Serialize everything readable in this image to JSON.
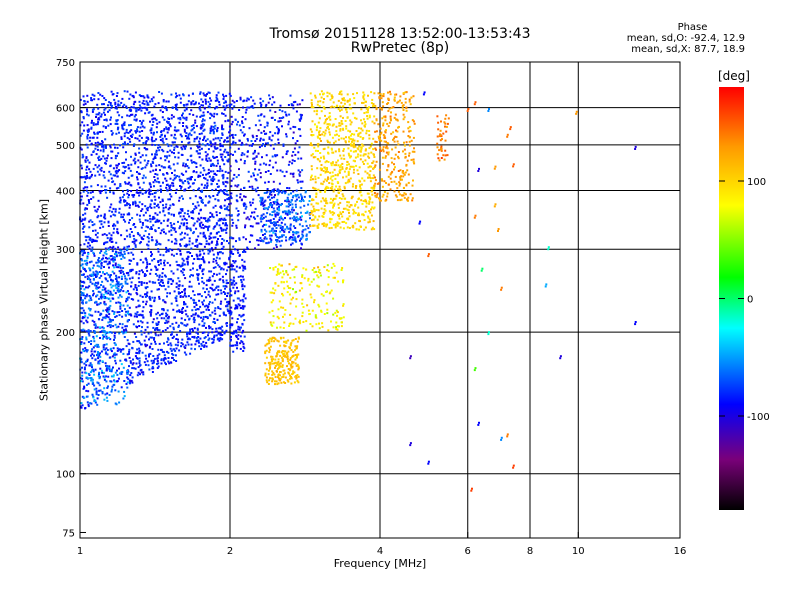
{
  "title": {
    "line1": "Tromsø 20151128 13:52:00-13:53:43",
    "line2": "RwPretec (8p)"
  },
  "phase_info": {
    "heading": "Phase",
    "o_mode": "mean, sd,O:  -92.4,  12.9",
    "x_mode": "mean, sd,X:   87.7,  18.9"
  },
  "colorbar": {
    "unit_label": "[deg]",
    "tick_labels": [
      "100",
      "0",
      "-100"
    ],
    "tick_values": [
      100,
      0,
      -100
    ],
    "range": [
      -180,
      180
    ],
    "colormap": "rainbow (black-purple-blue-cyan-green-yellow-orange-red)"
  },
  "chart_data": {
    "type": "scatter",
    "xlabel": "Frequency [MHz]",
    "ylabel": "Stationary phase Virtual Height [km]",
    "x_scale": "log",
    "y_scale": "log",
    "xlim": [
      1,
      16
    ],
    "ylim": [
      73,
      750
    ],
    "x_ticks": [
      1,
      2,
      4,
      6,
      8,
      10,
      16
    ],
    "x_tick_labels": [
      "1",
      "2",
      "4",
      "6",
      "8",
      "10",
      "16"
    ],
    "y_ticks": [
      75,
      100,
      200,
      300,
      400,
      500,
      600,
      750
    ],
    "y_tick_labels": [
      "75",
      "100",
      "200",
      "300",
      "400",
      "500",
      "600",
      "750"
    ],
    "grid_x": [
      2,
      4,
      6,
      8,
      10
    ],
    "grid_y": [
      100,
      200,
      300,
      400,
      500,
      600
    ],
    "grid": true,
    "regions": [
      {
        "x_min": 1.0,
        "x_max": 2.0,
        "h_min_at_start": 135,
        "h_min_at_end": 195,
        "h_max": 650,
        "phase_mean": -92,
        "phase_sd": 12,
        "count": 3000
      },
      {
        "x_min": 1.0,
        "x_max": 1.25,
        "h_min": 140,
        "h_max": 300,
        "phase_mean": -60,
        "phase_sd": 15,
        "count": 300
      },
      {
        "x_min": 2.0,
        "x_max": 2.8,
        "h_min": 300,
        "h_max": 640,
        "phase_mean": -95,
        "phase_sd": 15,
        "count": 500
      },
      {
        "x_min": 2.3,
        "x_max": 2.9,
        "h_min": 310,
        "h_max": 400,
        "phase_mean": -70,
        "phase_sd": 18,
        "count": 200
      },
      {
        "x_min": 2.0,
        "x_max": 2.15,
        "h_min": 180,
        "h_max": 300,
        "phase_mean": -95,
        "phase_sd": 10,
        "count": 150
      },
      {
        "x_min": 2.35,
        "x_max": 2.75,
        "h_min": 155,
        "h_max": 195,
        "phase_mean": 110,
        "phase_sd": 8,
        "count": 220
      },
      {
        "x_min": 2.4,
        "x_max": 3.4,
        "h_min": 200,
        "h_max": 280,
        "phase_mean": 85,
        "phase_sd": 25,
        "count": 200
      },
      {
        "x_min": 2.9,
        "x_max": 3.9,
        "h_min": 330,
        "h_max": 650,
        "phase_mean": 100,
        "phase_sd": 12,
        "count": 700
      },
      {
        "x_min": 3.9,
        "x_max": 4.7,
        "h_min": 380,
        "h_max": 650,
        "phase_mean": 125,
        "phase_sd": 15,
        "count": 280
      },
      {
        "x_min": 5.2,
        "x_max": 5.5,
        "h_min": 460,
        "h_max": 580,
        "phase_mean": 140,
        "phase_sd": 12,
        "count": 40
      }
    ],
    "isolated_points": [
      {
        "x": 6.1,
        "y": 92,
        "phase": 160
      },
      {
        "x": 7.4,
        "y": 103,
        "phase": 160
      },
      {
        "x": 5.0,
        "y": 105,
        "phase": -100
      },
      {
        "x": 4.6,
        "y": 115,
        "phase": -110
      },
      {
        "x": 7.2,
        "y": 120,
        "phase": 140
      },
      {
        "x": 7.0,
        "y": 118,
        "phase": -60
      },
      {
        "x": 6.3,
        "y": 127,
        "phase": -100
      },
      {
        "x": 4.6,
        "y": 176,
        "phase": -120
      },
      {
        "x": 9.2,
        "y": 176,
        "phase": -110
      },
      {
        "x": 6.2,
        "y": 166,
        "phase": 20
      },
      {
        "x": 6.6,
        "y": 198,
        "phase": -20
      },
      {
        "x": 13.0,
        "y": 208,
        "phase": -100
      },
      {
        "x": 8.6,
        "y": 250,
        "phase": -50
      },
      {
        "x": 6.4,
        "y": 270,
        "phase": -10
      },
      {
        "x": 7.0,
        "y": 246,
        "phase": 140
      },
      {
        "x": 5.0,
        "y": 290,
        "phase": 150
      },
      {
        "x": 4.8,
        "y": 340,
        "phase": -100
      },
      {
        "x": 6.9,
        "y": 328,
        "phase": 130
      },
      {
        "x": 6.2,
        "y": 350,
        "phase": 140
      },
      {
        "x": 6.8,
        "y": 370,
        "phase": 120
      },
      {
        "x": 6.3,
        "y": 440,
        "phase": -110
      },
      {
        "x": 6.8,
        "y": 445,
        "phase": 130
      },
      {
        "x": 7.4,
        "y": 450,
        "phase": 150
      },
      {
        "x": 13.0,
        "y": 490,
        "phase": -110
      },
      {
        "x": 7.2,
        "y": 520,
        "phase": 140
      },
      {
        "x": 9.9,
        "y": 582,
        "phase": 130
      },
      {
        "x": 6.6,
        "y": 590,
        "phase": -60
      },
      {
        "x": 6.0,
        "y": 590,
        "phase": 150
      },
      {
        "x": 7.3,
        "y": 540,
        "phase": 150
      },
      {
        "x": 4.9,
        "y": 640,
        "phase": -100
      },
      {
        "x": 6.2,
        "y": 610,
        "phase": 150
      },
      {
        "x": 8.7,
        "y": 300,
        "phase": -20
      }
    ]
  }
}
